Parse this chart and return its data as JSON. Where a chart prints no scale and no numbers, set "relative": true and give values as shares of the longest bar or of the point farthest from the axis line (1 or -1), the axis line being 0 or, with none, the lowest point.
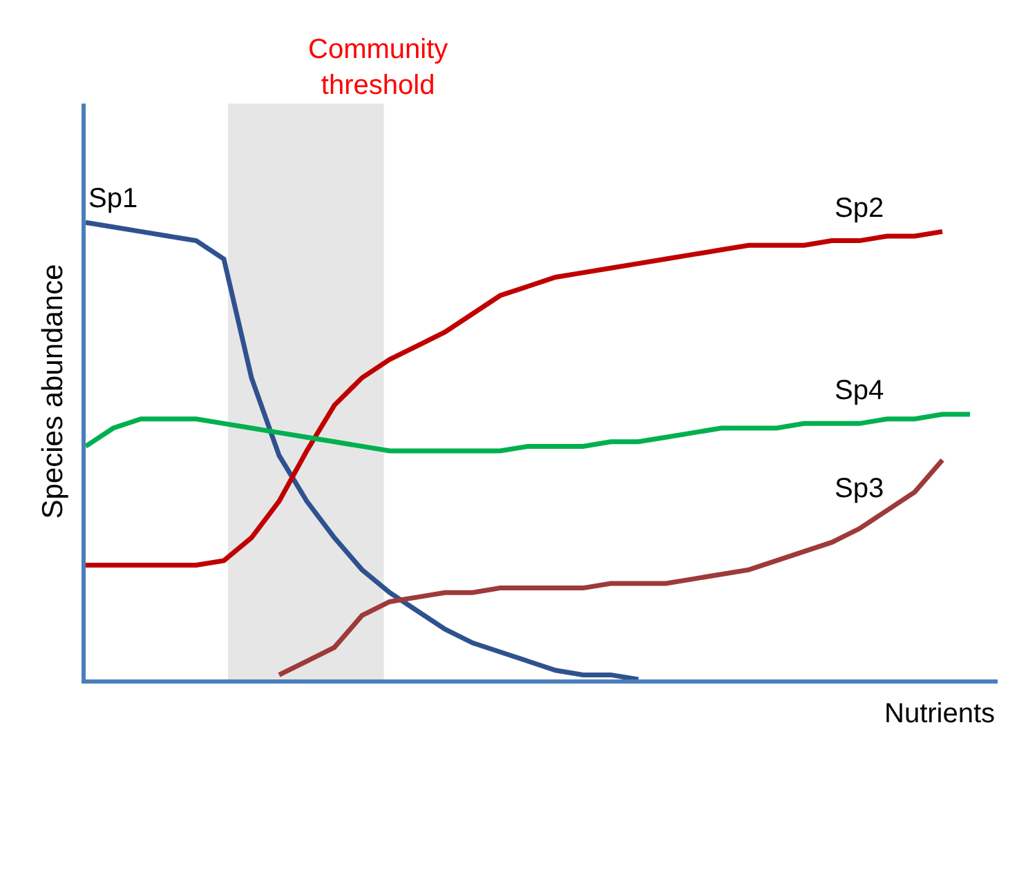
{
  "chart_data": {
    "type": "line",
    "relative": true,
    "xlabel": "Nutrients",
    "ylabel": "Species abundance",
    "tick_labels": false,
    "grid": false,
    "legend": false,
    "marker": "none",
    "line_style": "solid",
    "categories": [
      null,
      null,
      null,
      null,
      null,
      null,
      null,
      null,
      null,
      null,
      null,
      null,
      null,
      null,
      null,
      null,
      null,
      null,
      null,
      null,
      null,
      null,
      null,
      null,
      null,
      null,
      null,
      null,
      null,
      null,
      null,
      null,
      null,
      null
    ],
    "annotations": [
      "Community threshold"
    ],
    "series": [
      {
        "name": "Sp1",
        "color": "#2f528f",
        "values": [
          1.0,
          0.99,
          0.98,
          0.97,
          0.96,
          0.92,
          0.66,
          0.49,
          0.39,
          0.31,
          0.24,
          0.19,
          0.15,
          0.11,
          0.08,
          0.06,
          0.04,
          0.02,
          0.01,
          0.01,
          0.0,
          null,
          null,
          null,
          null,
          null,
          null,
          null,
          null,
          null,
          null,
          null,
          null,
          null
        ]
      },
      {
        "name": "Sp2",
        "color": "#c00000",
        "values": [
          0.25,
          0.25,
          0.25,
          0.25,
          0.25,
          0.26,
          0.31,
          0.39,
          0.5,
          0.6,
          0.66,
          0.7,
          0.73,
          0.76,
          0.8,
          0.84,
          0.86,
          0.88,
          0.89,
          0.9,
          0.91,
          0.92,
          0.93,
          0.94,
          0.95,
          0.95,
          0.95,
          0.96,
          0.96,
          0.97,
          0.97,
          0.98,
          null,
          null
        ]
      },
      {
        "name": "Sp4",
        "color": "#00b050",
        "values": [
          0.51,
          0.55,
          0.57,
          0.57,
          0.57,
          0.56,
          0.55,
          0.54,
          0.53,
          0.52,
          0.51,
          0.5,
          0.5,
          0.5,
          0.5,
          0.5,
          0.51,
          0.51,
          0.51,
          0.52,
          0.52,
          0.53,
          0.54,
          0.55,
          0.55,
          0.55,
          0.56,
          0.56,
          0.56,
          0.57,
          0.57,
          0.58,
          0.58,
          null
        ]
      },
      {
        "name": "Sp3",
        "color": "#9e3a3a",
        "values": [
          null,
          null,
          null,
          null,
          null,
          null,
          null,
          0.01,
          0.04,
          0.07,
          0.14,
          0.17,
          0.18,
          0.19,
          0.19,
          0.2,
          0.2,
          0.2,
          0.2,
          0.21,
          0.21,
          0.21,
          0.22,
          0.23,
          0.24,
          0.26,
          0.28,
          0.3,
          0.33,
          0.37,
          0.41,
          0.48,
          null,
          null
        ]
      }
    ]
  }
}
